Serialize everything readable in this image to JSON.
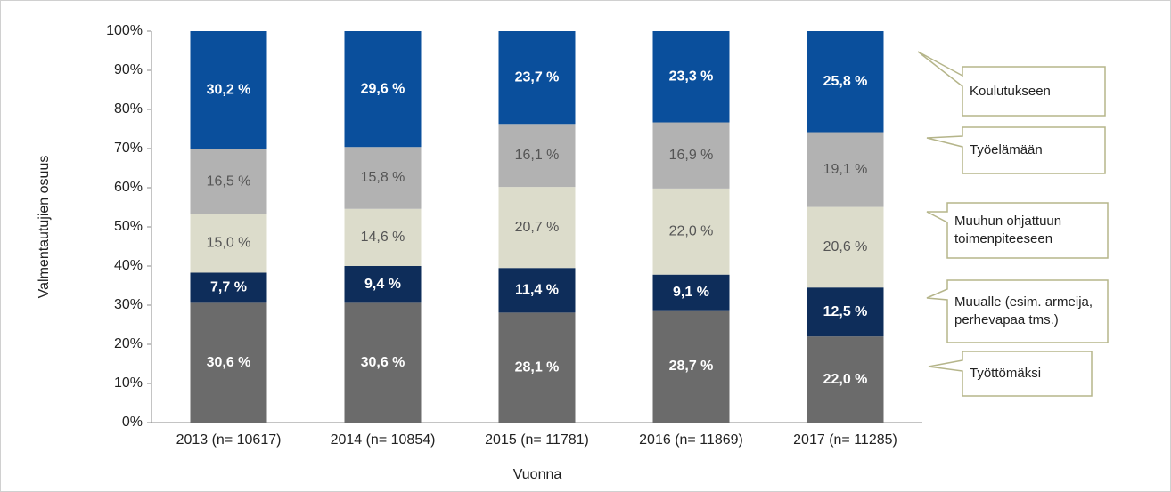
{
  "chart_data": {
    "type": "stacked_bar",
    "x_label": "Vuonna",
    "y_label": "Valmentautujien osuus",
    "categories": [
      "2013 (n= 10617)",
      "2014 (n= 10854)",
      "2015 (n= 11781)",
      "2016 (n= 11869)",
      "2017 (n= 11285)"
    ],
    "series": [
      {
        "name": "Työttömäksi",
        "color": "#6b6b6b",
        "label_color": "#ffffff",
        "values": [
          30.6,
          30.6,
          28.1,
          28.7,
          22.0
        ],
        "value_labels": [
          "30,6 %",
          "30,6 %",
          "28,1 %",
          "28,7 %",
          "22,0 %"
        ]
      },
      {
        "name": "Muualle (esim. armeija, perhevapaa tms.)",
        "color": "#0e2d5a",
        "label_color": "#ffffff",
        "values": [
          7.7,
          9.4,
          11.4,
          9.1,
          12.5
        ],
        "value_labels": [
          "7,7 %",
          "9,4 %",
          "11,4 %",
          "9,1 %",
          "12,5 %"
        ]
      },
      {
        "name": "Muuhun ohjattuun toimenpiteeseen",
        "color": "#dcdccb",
        "label_color": "#555555",
        "values": [
          15.0,
          14.6,
          20.7,
          22.0,
          20.6
        ],
        "value_labels": [
          "15,0 %",
          "14,6 %",
          "20,7 %",
          "22,0 %",
          "20,6 %"
        ]
      },
      {
        "name": "Työelämään",
        "color": "#b2b2b2",
        "label_color": "#555555",
        "values": [
          16.5,
          15.8,
          16.1,
          16.9,
          19.1
        ],
        "value_labels": [
          "16,5 %",
          "15,8 %",
          "16,1 %",
          "16,9 %",
          "19,1 %"
        ]
      },
      {
        "name": "Koulutukseen",
        "color": "#0a4f9c",
        "label_color": "#ffffff",
        "values": [
          30.2,
          29.6,
          23.7,
          23.3,
          25.8
        ],
        "value_labels": [
          "30,2 %",
          "29,6 %",
          "23,7 %",
          "23,3 %",
          "25,8 %"
        ]
      }
    ],
    "ylim": [
      0,
      100
    ],
    "yticks": [
      {
        "value": 0,
        "label": "0%"
      },
      {
        "value": 10,
        "label": "10%"
      },
      {
        "value": 20,
        "label": "20%"
      },
      {
        "value": 30,
        "label": "30%"
      },
      {
        "value": 40,
        "label": "40%"
      },
      {
        "value": 50,
        "label": "50%"
      },
      {
        "value": 60,
        "label": "60%"
      },
      {
        "value": 70,
        "label": "70%"
      },
      {
        "value": 80,
        "label": "80%"
      },
      {
        "value": 90,
        "label": "90%"
      },
      {
        "value": 100,
        "label": "100%"
      }
    ]
  }
}
